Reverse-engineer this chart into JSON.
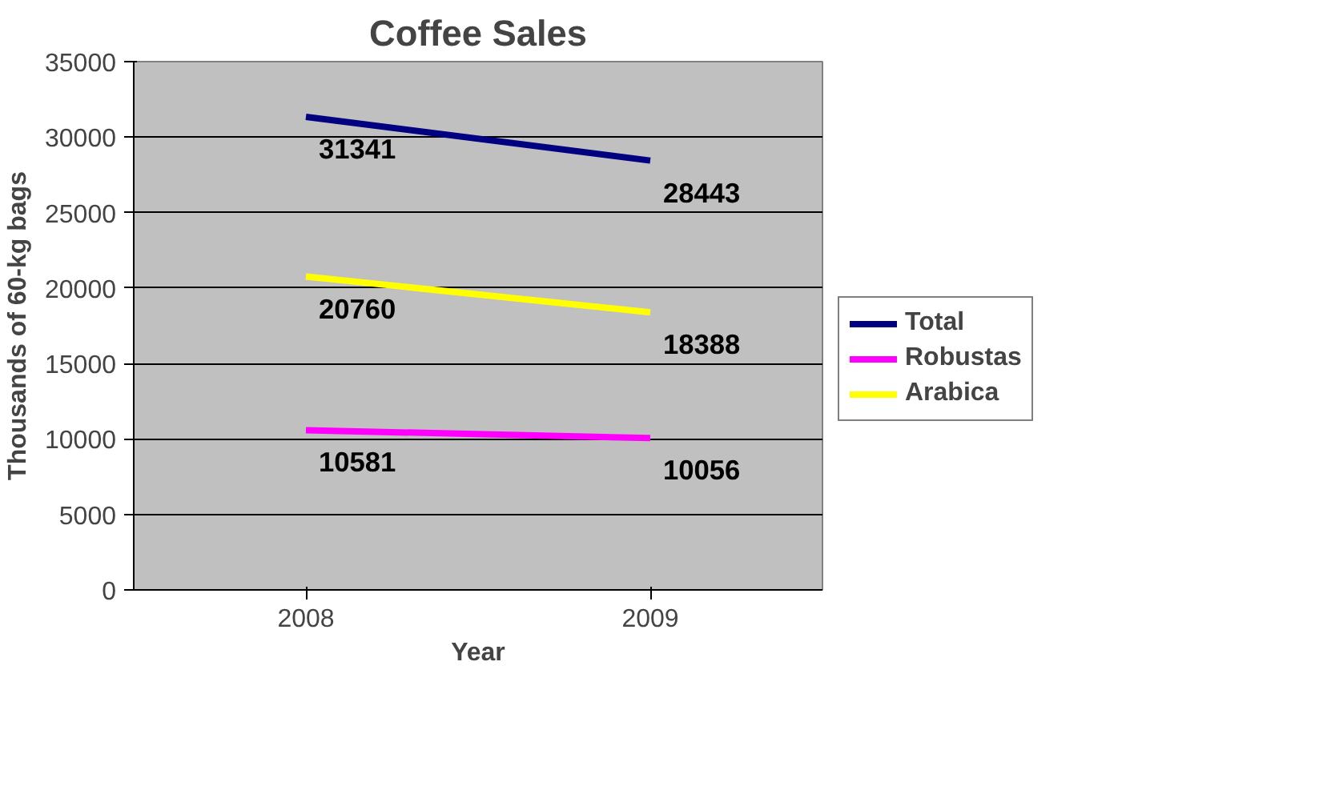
{
  "chart_data": {
    "type": "line",
    "title": "Coffee Sales",
    "xlabel": "Year",
    "ylabel": "Thousands of 60-kg bags",
    "categories": [
      "2008",
      "2009"
    ],
    "series": [
      {
        "name": "Total",
        "color": "#000080",
        "values": [
          31341,
          28443
        ]
      },
      {
        "name": "Robustas",
        "color": "#ff00ff",
        "values": [
          10581,
          10056
        ]
      },
      {
        "name": "Arabica",
        "color": "#ffff00",
        "values": [
          20760,
          18388
        ]
      }
    ],
    "ylim": [
      0,
      35000
    ],
    "yticks": [
      0,
      5000,
      10000,
      15000,
      20000,
      25000,
      30000,
      35000
    ],
    "grid": "y",
    "legend": "right",
    "data_labels": true,
    "marker": "none",
    "line_style": "solid"
  }
}
